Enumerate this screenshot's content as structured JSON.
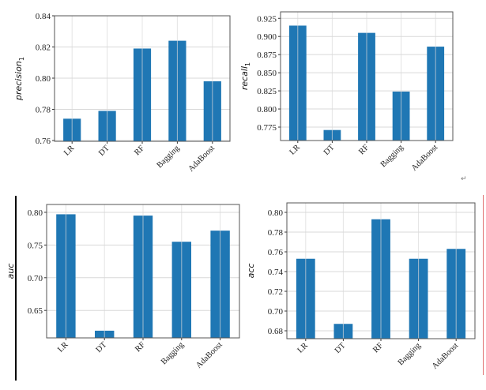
{
  "page": {
    "paragraph_mark": "↵"
  },
  "colors": {
    "bar": "#1f77b4",
    "grid": "#d9d9d9",
    "frame": "#555555"
  },
  "chart_data": [
    {
      "type": "bar",
      "title": "",
      "xlabel": "",
      "ylabel": "precision",
      "ylabel_sub": "1",
      "categories": [
        "LR",
        "DT",
        "RF",
        "Bagging",
        "AdaBoost"
      ],
      "values": [
        0.774,
        0.779,
        0.819,
        0.824,
        0.798
      ],
      "ylim": [
        0.7595,
        0.84
      ],
      "yticks": [
        0.76,
        0.78,
        0.8,
        0.82,
        0.84
      ],
      "ytick_labels": [
        "0.76",
        "0.78",
        "0.80",
        "0.82",
        "0.84"
      ],
      "grid": true
    },
    {
      "type": "bar",
      "title": "",
      "xlabel": "",
      "ylabel": "recall",
      "ylabel_sub": "1",
      "categories": [
        "LR",
        "DT",
        "RF",
        "Bagging",
        "AdaBoost"
      ],
      "values": [
        0.915,
        0.771,
        0.905,
        0.824,
        0.886
      ],
      "ylim": [
        0.7565,
        0.934
      ],
      "yticks": [
        0.775,
        0.8,
        0.825,
        0.85,
        0.875,
        0.9,
        0.925
      ],
      "ytick_labels": [
        "0.775",
        "0.800",
        "0.825",
        "0.850",
        "0.875",
        "0.900",
        "0.925"
      ],
      "grid": true
    },
    {
      "type": "bar",
      "title": "",
      "xlabel": "",
      "ylabel": "auc",
      "ylabel_sub": "",
      "categories": [
        "LR",
        "DT",
        "RF",
        "Bagging",
        "AdaBoost"
      ],
      "values": [
        0.797,
        0.619,
        0.795,
        0.755,
        0.772
      ],
      "ylim": [
        0.608,
        0.812
      ],
      "yticks": [
        0.65,
        0.7,
        0.75,
        0.8
      ],
      "ytick_labels": [
        "0.65",
        "0.70",
        "0.75",
        "0.80"
      ],
      "grid": true
    },
    {
      "type": "bar",
      "title": "",
      "xlabel": "",
      "ylabel": "acc",
      "ylabel_sub": "",
      "categories": [
        "LR",
        "DT",
        "RF",
        "Bagging",
        "AdaBoost"
      ],
      "values": [
        0.753,
        0.687,
        0.793,
        0.753,
        0.763
      ],
      "ylim": [
        0.672,
        0.8096
      ],
      "yticks": [
        0.68,
        0.7,
        0.72,
        0.74,
        0.76,
        0.78,
        0.8
      ],
      "ytick_labels": [
        "0.68",
        "0.70",
        "0.72",
        "0.74",
        "0.76",
        "0.78",
        "0.80"
      ],
      "grid": true
    }
  ]
}
